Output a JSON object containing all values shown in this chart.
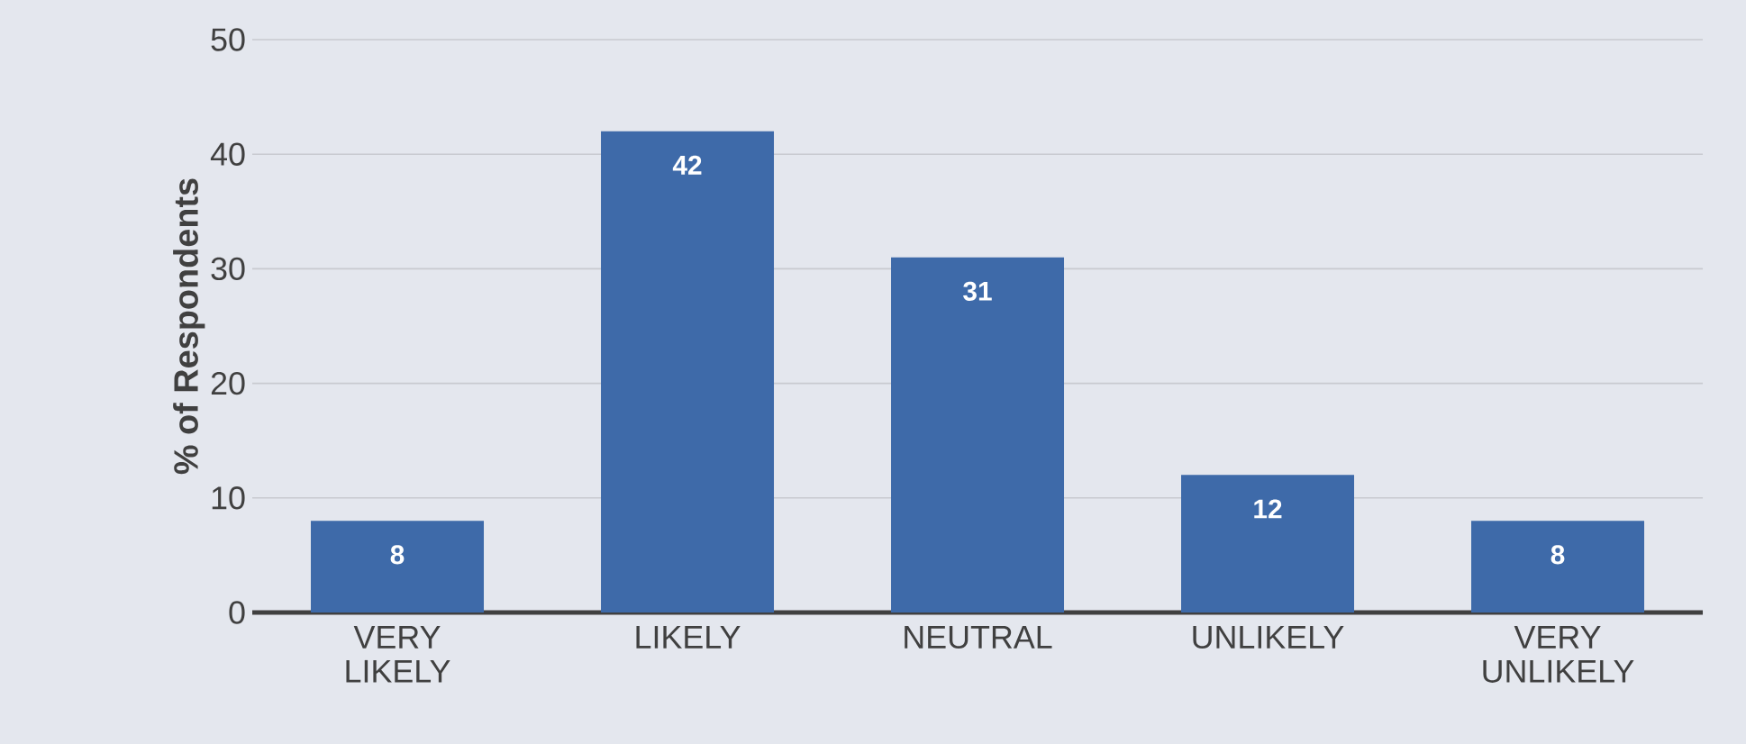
{
  "chart_data": {
    "type": "bar",
    "ylabel": "% of Respondents",
    "categories": [
      "VERY LIKELY",
      "LIKELY",
      "NEUTRAL",
      "UNLIKELY",
      "VERY UNLIKELY"
    ],
    "values": [
      8,
      42,
      31,
      12,
      8
    ],
    "color": "#3e6aa9",
    "ylim": [
      0,
      50
    ],
    "yticks": [
      0,
      10,
      20,
      30,
      40,
      50
    ],
    "grid": "y",
    "data_labels": true
  }
}
